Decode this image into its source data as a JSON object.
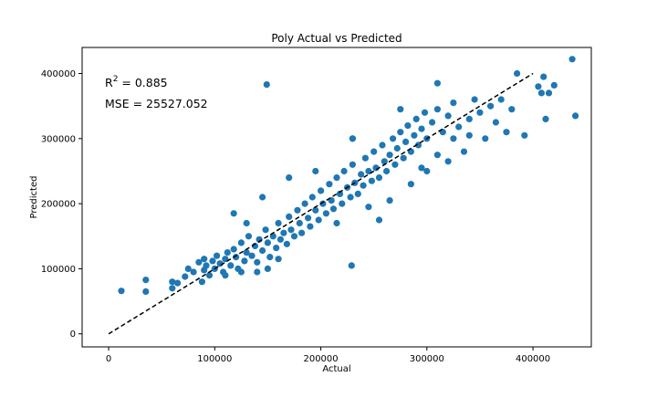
{
  "chart_data": {
    "type": "scatter",
    "title": "Poly Actual vs Predicted",
    "xlabel": "Actual",
    "ylabel": "Predicted",
    "xlim": [
      -25000,
      455000
    ],
    "ylim": [
      -20000,
      440000
    ],
    "xticks": [
      0,
      100000,
      200000,
      300000,
      400000
    ],
    "yticks": [
      0,
      100000,
      200000,
      300000,
      400000
    ],
    "tick_labels_x": [
      "0",
      "100000",
      "200000",
      "300000",
      "400000"
    ],
    "tick_labels_y": [
      "0",
      "100000",
      "200000",
      "300000",
      "400000"
    ],
    "annotations": {
      "r2_prefix": "R",
      "r2_sup": "2",
      "r2_value": " = 0.885",
      "mse": "MSE = 25527.052"
    },
    "reference_line": {
      "x": [
        0,
        400000
      ],
      "y": [
        0,
        400000
      ],
      "style": "dashed",
      "color": "#000000"
    },
    "marker_color": "#1f77b4",
    "grid": false,
    "series": [
      {
        "points": [
          [
            12000,
            66000
          ],
          [
            35000,
            83000
          ],
          [
            35000,
            65000
          ],
          [
            60000,
            70000
          ],
          [
            60000,
            80000
          ],
          [
            65000,
            78000
          ],
          [
            72000,
            88000
          ],
          [
            75000,
            100000
          ],
          [
            80000,
            95000
          ],
          [
            85000,
            110000
          ],
          [
            88000,
            80000
          ],
          [
            90000,
            98000
          ],
          [
            92000,
            105000
          ],
          [
            95000,
            90000
          ],
          [
            98000,
            112000
          ],
          [
            100000,
            100000
          ],
          [
            102000,
            120000
          ],
          [
            105000,
            108000
          ],
          [
            108000,
            95000
          ],
          [
            110000,
            115000
          ],
          [
            112000,
            125000
          ],
          [
            115000,
            105000
          ],
          [
            118000,
            130000
          ],
          [
            120000,
            118000
          ],
          [
            122000,
            100000
          ],
          [
            125000,
            140000
          ],
          [
            128000,
            112000
          ],
          [
            130000,
            125000
          ],
          [
            132000,
            150000
          ],
          [
            135000,
            120000
          ],
          [
            138000,
            135000
          ],
          [
            140000,
            110000
          ],
          [
            142000,
            145000
          ],
          [
            145000,
            128000
          ],
          [
            148000,
            160000
          ],
          [
            150000,
            140000
          ],
          [
            152000,
            118000
          ],
          [
            155000,
            150000
          ],
          [
            158000,
            132000
          ],
          [
            160000,
            170000
          ],
          [
            162000,
            145000
          ],
          [
            165000,
            155000
          ],
          [
            168000,
            138000
          ],
          [
            170000,
            180000
          ],
          [
            172000,
            160000
          ],
          [
            175000,
            150000
          ],
          [
            178000,
            190000
          ],
          [
            180000,
            170000
          ],
          [
            182000,
            155000
          ],
          [
            185000,
            200000
          ],
          [
            188000,
            178000
          ],
          [
            190000,
            165000
          ],
          [
            192000,
            210000
          ],
          [
            195000,
            190000
          ],
          [
            198000,
            175000
          ],
          [
            200000,
            220000
          ],
          [
            202000,
            200000
          ],
          [
            205000,
            185000
          ],
          [
            208000,
            230000
          ],
          [
            210000,
            205000
          ],
          [
            212000,
            192000
          ],
          [
            215000,
            240000
          ],
          [
            218000,
            215000
          ],
          [
            220000,
            200000
          ],
          [
            222000,
            250000
          ],
          [
            225000,
            225000
          ],
          [
            228000,
            210000
          ],
          [
            230000,
            260000
          ],
          [
            232000,
            232000
          ],
          [
            235000,
            215000
          ],
          [
            238000,
            245000
          ],
          [
            240000,
            228000
          ],
          [
            242000,
            270000
          ],
          [
            245000,
            250000
          ],
          [
            248000,
            235000
          ],
          [
            250000,
            280000
          ],
          [
            252000,
            255000
          ],
          [
            255000,
            240000
          ],
          [
            258000,
            290000
          ],
          [
            260000,
            265000
          ],
          [
            262000,
            250000
          ],
          [
            265000,
            275000
          ],
          [
            268000,
            300000
          ],
          [
            270000,
            260000
          ],
          [
            272000,
            285000
          ],
          [
            275000,
            310000
          ],
          [
            278000,
            270000
          ],
          [
            280000,
            295000
          ],
          [
            282000,
            320000
          ],
          [
            285000,
            280000
          ],
          [
            288000,
            305000
          ],
          [
            290000,
            330000
          ],
          [
            292000,
            290000
          ],
          [
            295000,
            315000
          ],
          [
            298000,
            340000
          ],
          [
            300000,
            300000
          ],
          [
            305000,
            325000
          ],
          [
            310000,
            345000
          ],
          [
            315000,
            310000
          ],
          [
            320000,
            335000
          ],
          [
            325000,
            355000
          ],
          [
            330000,
            318000
          ],
          [
            340000,
            330000
          ],
          [
            345000,
            360000
          ],
          [
            350000,
            340000
          ],
          [
            360000,
            350000
          ],
          [
            365000,
            325000
          ],
          [
            370000,
            360000
          ],
          [
            375000,
            310000
          ],
          [
            380000,
            345000
          ],
          [
            385000,
            400000
          ],
          [
            392000,
            305000
          ],
          [
            405000,
            380000
          ],
          [
            408000,
            370000
          ],
          [
            410000,
            395000
          ],
          [
            412000,
            330000
          ],
          [
            415000,
            370000
          ],
          [
            420000,
            382000
          ],
          [
            437000,
            422000
          ],
          [
            440000,
            335000
          ],
          [
            149000,
            383000
          ],
          [
            229000,
            105000
          ],
          [
            230000,
            300000
          ],
          [
            145000,
            210000
          ],
          [
            90000,
            115000
          ],
          [
            110000,
            90000
          ],
          [
            125000,
            95000
          ],
          [
            140000,
            95000
          ],
          [
            150000,
            100000
          ],
          [
            160000,
            115000
          ],
          [
            130000,
            170000
          ],
          [
            118000,
            185000
          ],
          [
            170000,
            240000
          ],
          [
            195000,
            250000
          ],
          [
            215000,
            170000
          ],
          [
            255000,
            175000
          ],
          [
            245000,
            195000
          ],
          [
            265000,
            205000
          ],
          [
            285000,
            230000
          ],
          [
            300000,
            250000
          ],
          [
            320000,
            265000
          ],
          [
            335000,
            280000
          ],
          [
            355000,
            300000
          ],
          [
            340000,
            305000
          ],
          [
            310000,
            275000
          ],
          [
            275000,
            345000
          ],
          [
            310000,
            385000
          ],
          [
            325000,
            300000
          ],
          [
            295000,
            255000
          ],
          [
            230000,
            300000
          ]
        ]
      }
    ]
  }
}
